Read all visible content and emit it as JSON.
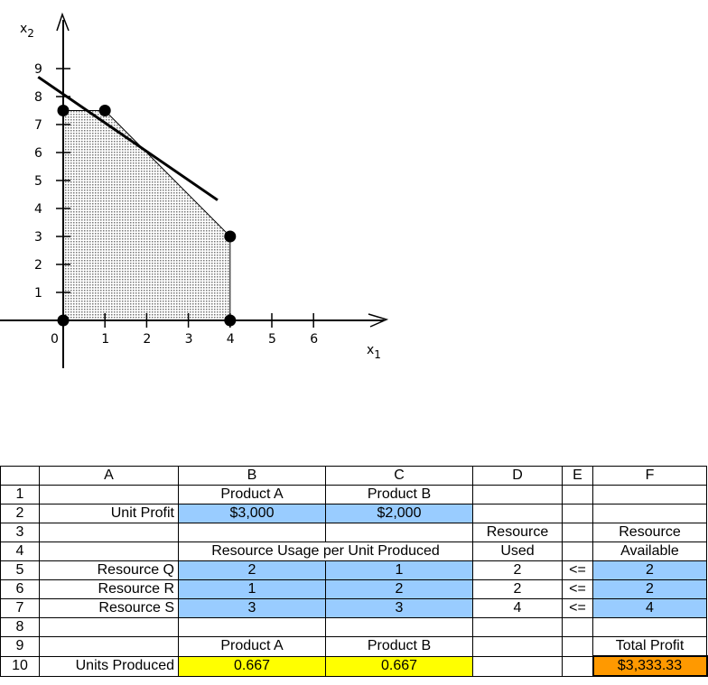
{
  "chart_data": {
    "type": "line",
    "xlabel": "x1",
    "ylabel": "x2",
    "xlim": [
      0,
      7
    ],
    "ylim": [
      0,
      10
    ],
    "x_ticks": [
      "0",
      "1",
      "2",
      "3",
      "4",
      "5",
      "6"
    ],
    "y_ticks": [
      "1",
      "2",
      "3",
      "4",
      "5",
      "6",
      "7",
      "8",
      "9"
    ],
    "feasible_region": [
      [
        0,
        0
      ],
      [
        0,
        7.5
      ],
      [
        1,
        7.5
      ],
      [
        4,
        3
      ],
      [
        4,
        0
      ]
    ],
    "points": [
      [
        0,
        0
      ],
      [
        0,
        7.5
      ],
      [
        1,
        7.5
      ],
      [
        4,
        3
      ],
      [
        4,
        0
      ]
    ],
    "objective_line": [
      [
        -0.6,
        8.7
      ],
      [
        3.7,
        4.3
      ]
    ],
    "colors": {
      "region_fill": "#d0d0d0",
      "line": "#000000"
    }
  },
  "sheet": {
    "columns": [
      "",
      "A",
      "B",
      "C",
      "D",
      "E",
      "F"
    ],
    "rows": [
      [
        "1",
        "",
        "Product A",
        "Product B",
        "",
        "",
        ""
      ],
      [
        "2",
        "Unit Profit",
        "$3,000",
        "$2,000",
        "",
        "",
        ""
      ],
      [
        "3",
        "",
        "",
        "",
        "Resource",
        "",
        "Resource"
      ],
      [
        "4",
        "",
        "Resource Usage per Unit Produced",
        "",
        "Used",
        "",
        "Available"
      ],
      [
        "5",
        "Resource Q",
        "2",
        "1",
        "2",
        "<=",
        "2"
      ],
      [
        "6",
        "Resource R",
        "1",
        "2",
        "2",
        "<=",
        "2"
      ],
      [
        "7",
        "Resource S",
        "3",
        "3",
        "4",
        "<=",
        "4"
      ],
      [
        "8",
        "",
        "",
        "",
        "",
        "",
        ""
      ],
      [
        "9",
        "",
        "Product A",
        "Product B",
        "",
        "",
        "Total Profit"
      ],
      [
        "10",
        "Units Produced",
        "0.667",
        "0.667",
        "",
        "",
        "$3,333.33"
      ]
    ],
    "colors": {
      "changing": "#ffff00",
      "data": "#99ccff",
      "objective": "#ff9900"
    }
  }
}
